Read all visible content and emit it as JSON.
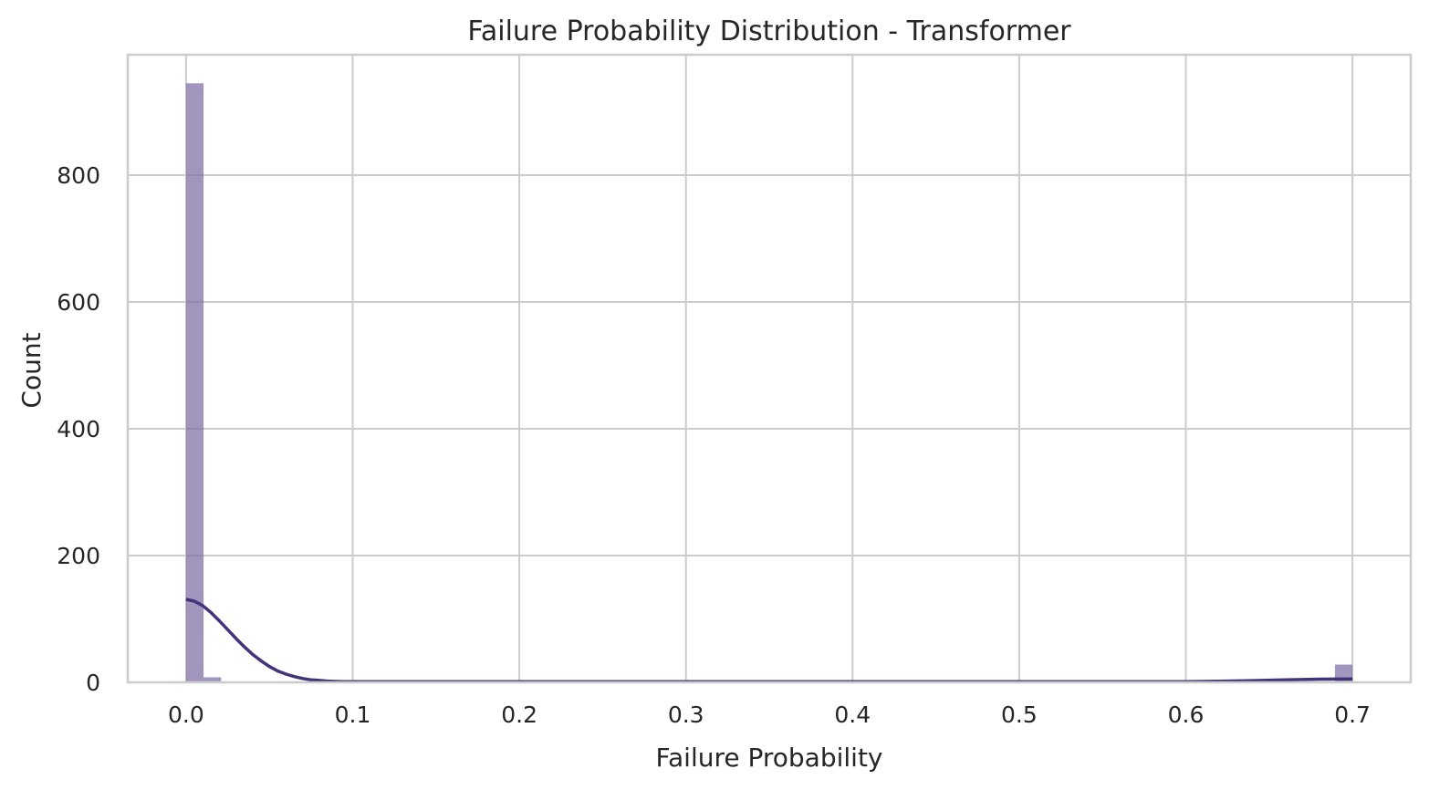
{
  "chart_data": {
    "type": "histogram",
    "title": "Failure Probability Distribution - Transformer",
    "xlabel": "Failure Probability",
    "ylabel": "Count",
    "xlim": [
      -0.035,
      0.735
    ],
    "ylim": [
      0,
      990
    ],
    "xticks": [
      0.0,
      0.1,
      0.2,
      0.3,
      0.4,
      0.5,
      0.6,
      0.7
    ],
    "xtick_labels": [
      "0.0",
      "0.1",
      "0.2",
      "0.3",
      "0.4",
      "0.5",
      "0.6",
      "0.7"
    ],
    "yticks": [
      0,
      200,
      400,
      600,
      800
    ],
    "ytick_labels": [
      "0",
      "200",
      "400",
      "600",
      "800"
    ],
    "grid": true,
    "bar_color": "#7e6ea6",
    "line_color": "#45337a",
    "bins": [
      {
        "x0": 0.0,
        "x1": 0.0105,
        "count": 945
      },
      {
        "x0": 0.0105,
        "x1": 0.021,
        "count": 8
      },
      {
        "x0": 0.6895,
        "x1": 0.7,
        "count": 28
      }
    ],
    "kde": {
      "x": [
        0.0,
        0.005,
        0.01,
        0.015,
        0.02,
        0.025,
        0.03,
        0.035,
        0.04,
        0.045,
        0.05,
        0.055,
        0.06,
        0.065,
        0.07,
        0.075,
        0.08,
        0.085,
        0.09,
        0.095,
        0.1,
        0.12,
        0.15,
        0.2,
        0.3,
        0.4,
        0.5,
        0.55,
        0.6,
        0.62,
        0.64,
        0.66,
        0.68,
        0.7
      ],
      "y": [
        131,
        128,
        121,
        110,
        97,
        83,
        69,
        56,
        44,
        34,
        25,
        18,
        13,
        9,
        6,
        4,
        3,
        2,
        1.5,
        1,
        1,
        1,
        1,
        1,
        1,
        1,
        1,
        1,
        1.2,
        1.8,
        2.8,
        4,
        5,
        5.5
      ]
    }
  }
}
